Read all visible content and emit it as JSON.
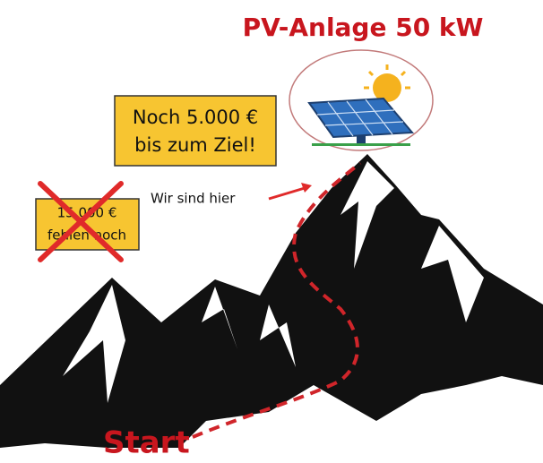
{
  "title": "PV-Anlage 50 kW",
  "goal_box": {
    "lines": [
      "Noch 5.000 €",
      "bis zum Ziel!"
    ]
  },
  "old_box": {
    "lines": [
      "15.000 €",
      "fehlen noch"
    ]
  },
  "marker_label": "Wir sind hier",
  "start_label": "Start"
}
